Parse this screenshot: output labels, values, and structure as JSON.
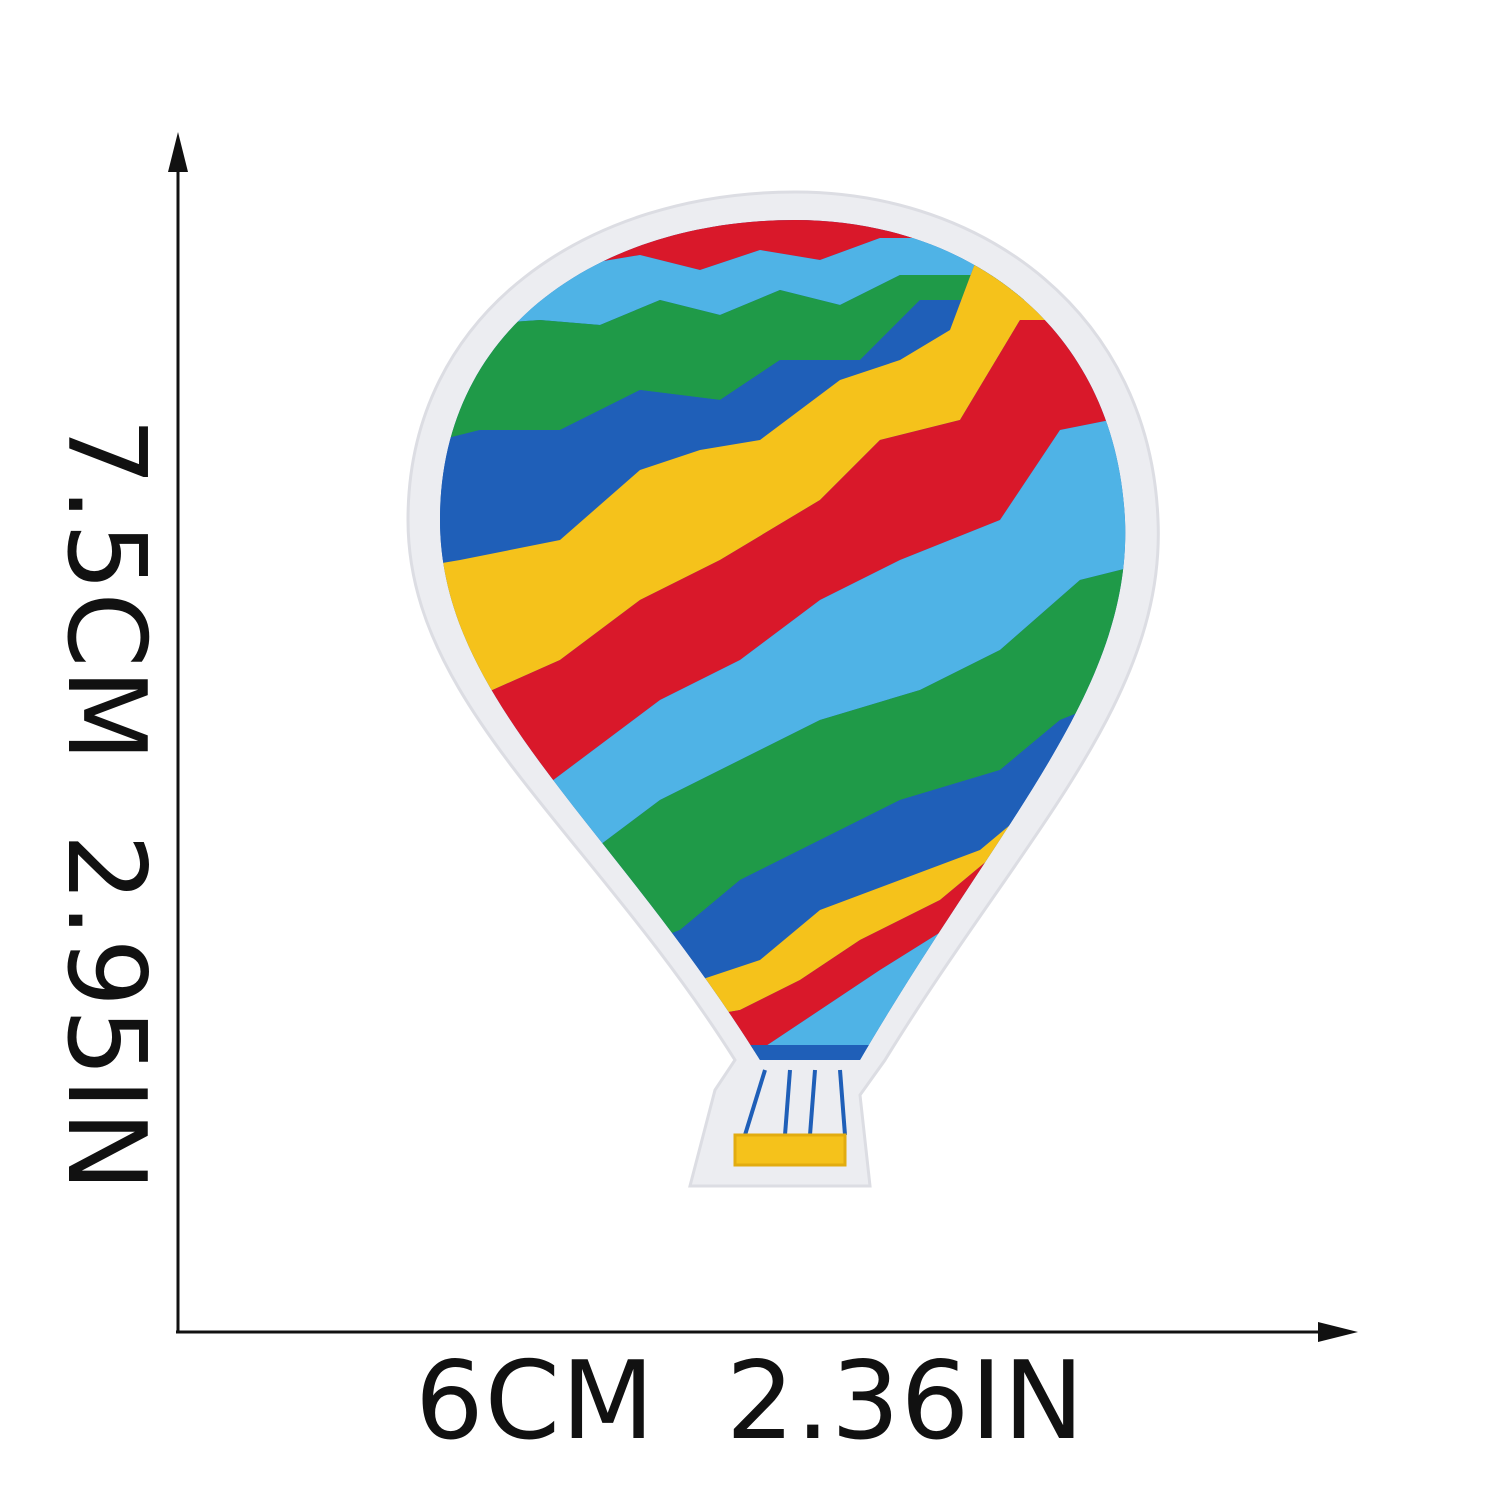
{
  "image": {
    "subject": "rainbow hot air balloon embroidered patch",
    "background_color": "#ffffff"
  },
  "dimensions": {
    "height_label": "7.5CM  2.95IN",
    "width_label": "6CM  2.36IN"
  },
  "colors": {
    "felt_border": "#ecedf1",
    "red": "#d9182a",
    "yellow": "#f5c21b",
    "green": "#1f9a48",
    "blue": "#1f5fb8",
    "light_blue": "#4fb3e6",
    "arrow": "#111111"
  }
}
